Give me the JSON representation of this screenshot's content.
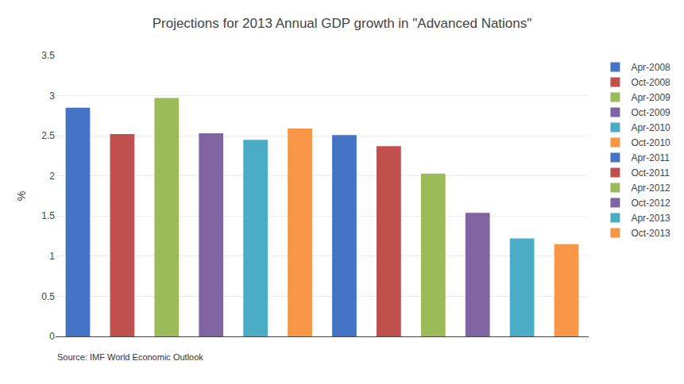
{
  "chart_data": {
    "type": "bar",
    "title": "Projections for 2013 Annual GDP growth in \"Advanced Nations\"",
    "ylabel": "%",
    "annotations": [
      "Source: IMF World Economic Outlook"
    ],
    "categories": [
      "Apr-2008",
      "Oct-2008",
      "Apr-2009",
      "Oct-2009",
      "Apr-2010",
      "Oct-2010",
      "Apr-2011",
      "Oct-2011",
      "Apr-2012",
      "Oct-2012",
      "Apr-2013",
      "Oct-2013"
    ],
    "values": [
      2.85,
      2.52,
      2.97,
      2.53,
      2.45,
      2.59,
      2.51,
      2.37,
      2.03,
      1.54,
      1.22,
      1.15
    ],
    "colors": [
      "#4472C4",
      "#C0504D",
      "#9BBB59",
      "#8064A2",
      "#4BACC6",
      "#F79646",
      "#4472C4",
      "#C0504D",
      "#9BBB59",
      "#8064A2",
      "#4BACC6",
      "#F79646"
    ],
    "ylim": [
      0,
      3.5
    ],
    "yticks": [
      0,
      0.5,
      1,
      1.5,
      2,
      2.5,
      3,
      3.5
    ],
    "grid": true,
    "legend": "right",
    "tick_labels": "y"
  }
}
